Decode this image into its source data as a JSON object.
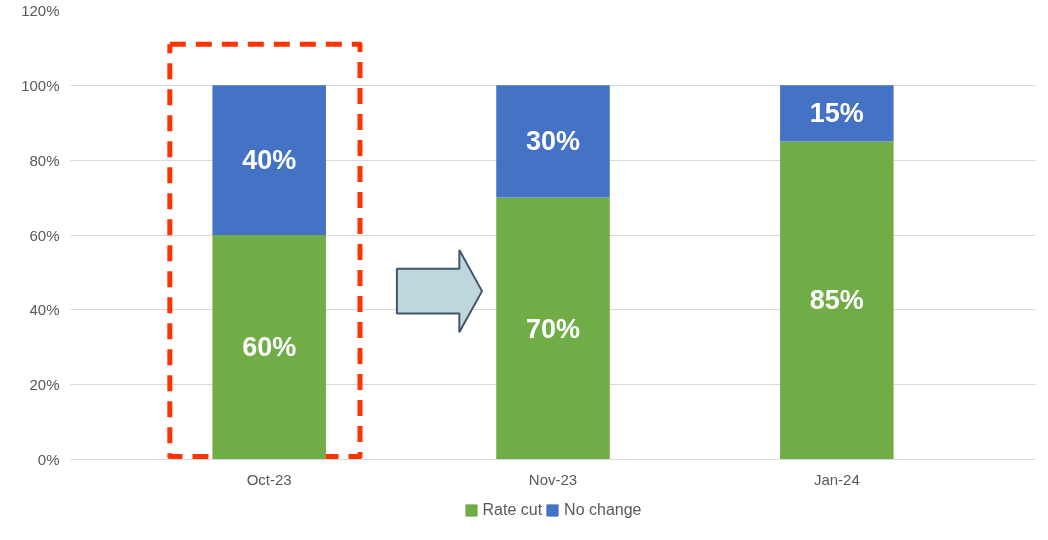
{
  "chart_data": {
    "type": "bar",
    "stacked": true,
    "categories": [
      "Oct-23",
      "Nov-23",
      "Jan-24"
    ],
    "series": [
      {
        "name": "Rate cut",
        "color": "#70ad47",
        "values": [
          60,
          70,
          85
        ],
        "value_labels": [
          "60%",
          "70%",
          "85%"
        ]
      },
      {
        "name": "No change",
        "color": "#4472c4",
        "values": [
          40,
          30,
          15
        ],
        "value_labels": [
          "40%",
          "30%",
          "15%"
        ]
      }
    ],
    "ylim": [
      0,
      120
    ],
    "yticks": [
      {
        "value": 0,
        "label": "0%"
      },
      {
        "value": 20,
        "label": "20%"
      },
      {
        "value": 40,
        "label": "40%"
      },
      {
        "value": 60,
        "label": "60%"
      },
      {
        "value": 80,
        "label": "80%"
      },
      {
        "value": 100,
        "label": "100%"
      },
      {
        "value": 120,
        "label": "120%"
      }
    ],
    "grid": "y",
    "legend": "bottom"
  }
}
